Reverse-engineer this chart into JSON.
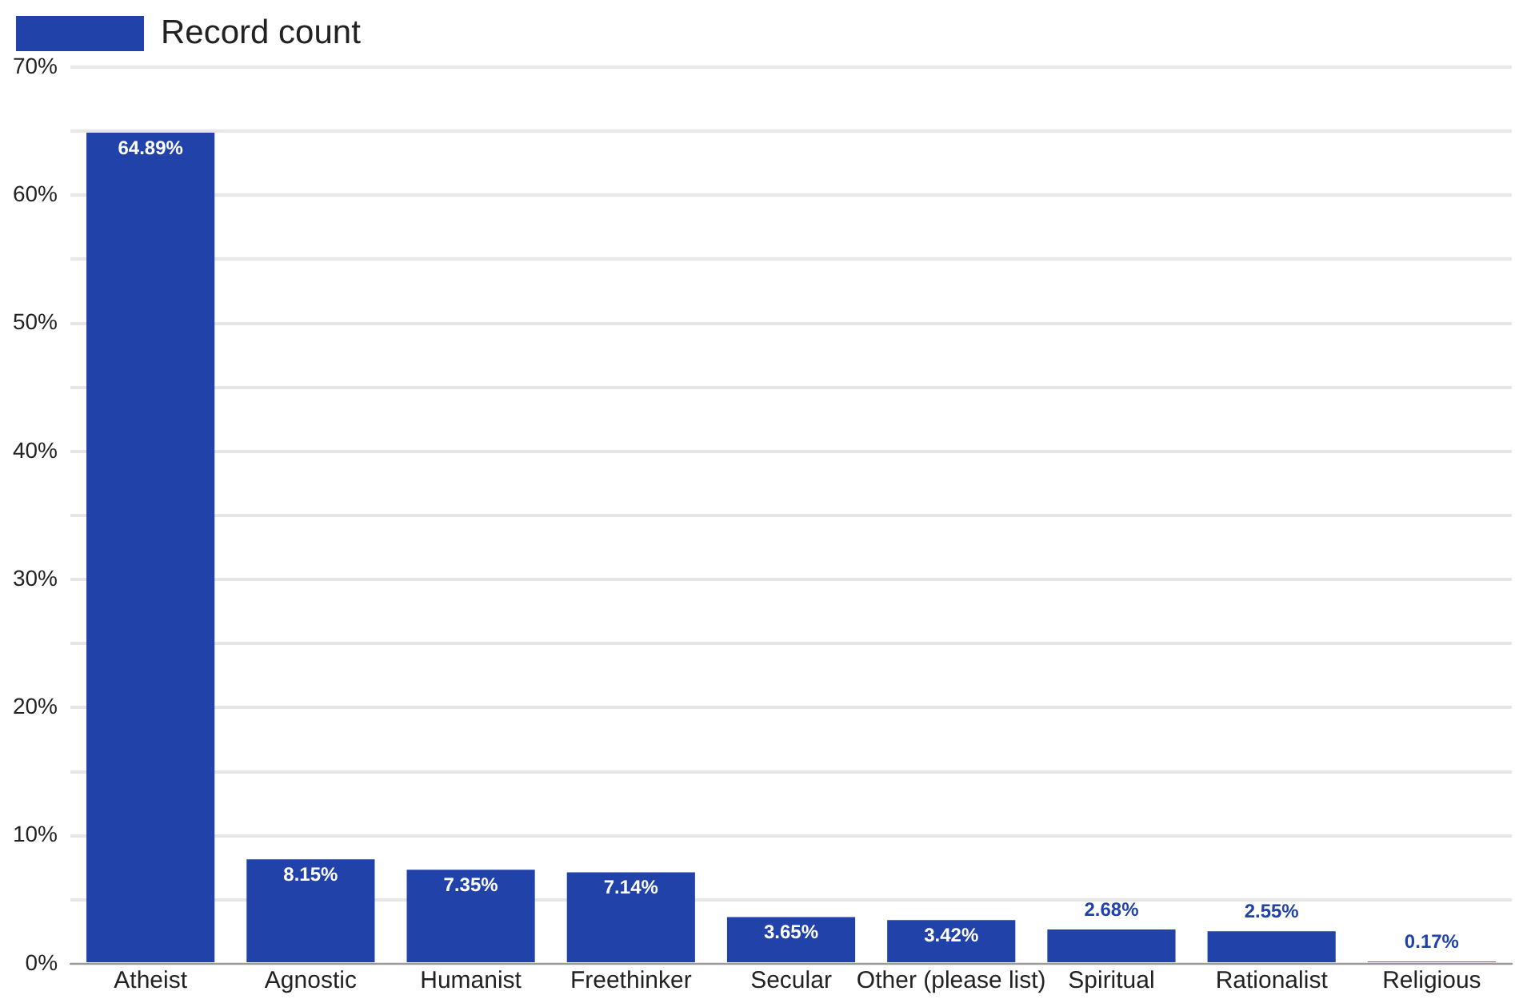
{
  "chart_data": {
    "type": "bar",
    "categories": [
      "Atheist",
      "Agnostic",
      "Humanist",
      "Freethinker",
      "Secular",
      "Other (please list)",
      "Spiritual",
      "Rationalist",
      "Religious"
    ],
    "series": [
      {
        "name": "Record count",
        "color": "#2142a8",
        "values": [
          64.89,
          8.15,
          7.35,
          7.14,
          3.65,
          3.42,
          2.68,
          2.55,
          0.17
        ],
        "value_labels": [
          "64.89%",
          "8.15%",
          "7.35%",
          "7.14%",
          "3.65%",
          "3.42%",
          "2.68%",
          "2.55%",
          "0.17%"
        ]
      }
    ],
    "ylim": [
      0,
      70
    ],
    "yticks": [
      {
        "value": 0,
        "label": "0%"
      },
      {
        "value": 5,
        "label": null
      },
      {
        "value": 10,
        "label": "10%"
      },
      {
        "value": 15,
        "label": null
      },
      {
        "value": 20,
        "label": "20%"
      },
      {
        "value": 25,
        "label": null
      },
      {
        "value": 30,
        "label": "30%"
      },
      {
        "value": 35,
        "label": null
      },
      {
        "value": 40,
        "label": "40%"
      },
      {
        "value": 45,
        "label": null
      },
      {
        "value": 50,
        "label": "50%"
      },
      {
        "value": 55,
        "label": null
      },
      {
        "value": 60,
        "label": "60%"
      },
      {
        "value": 65,
        "label": null
      },
      {
        "value": 70,
        "label": "70%"
      }
    ],
    "grid": "y",
    "legend": "top left"
  }
}
